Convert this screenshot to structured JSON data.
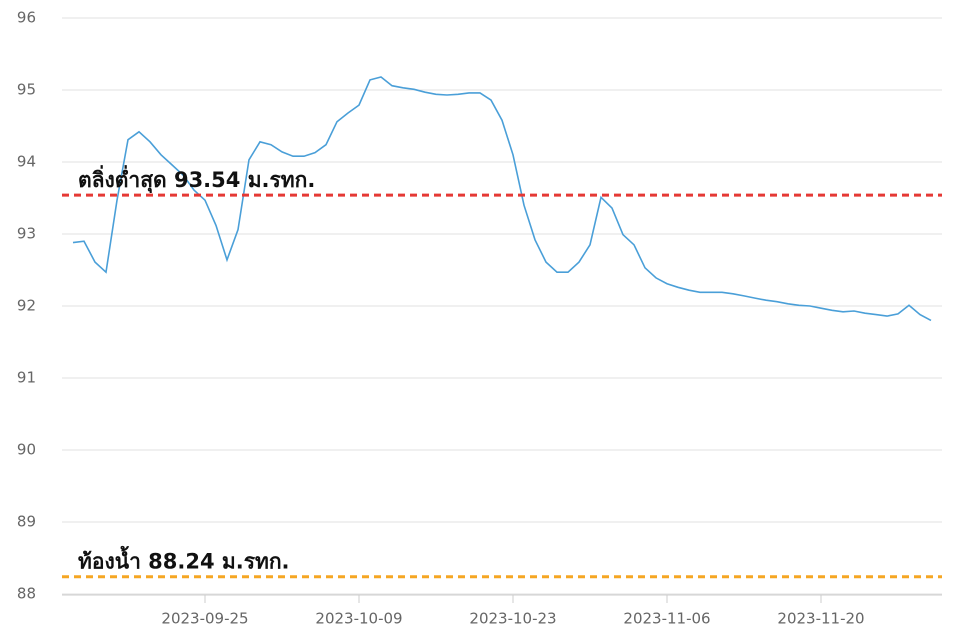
{
  "chart_data": {
    "type": "line",
    "x": [
      "2023-09-13",
      "2023-09-14",
      "2023-09-15",
      "2023-09-16",
      "2023-09-17",
      "2023-09-18",
      "2023-09-19",
      "2023-09-20",
      "2023-09-21",
      "2023-09-22",
      "2023-09-23",
      "2023-09-24",
      "2023-09-25",
      "2023-09-26",
      "2023-09-27",
      "2023-09-28",
      "2023-09-29",
      "2023-09-30",
      "2023-10-01",
      "2023-10-02",
      "2023-10-03",
      "2023-10-04",
      "2023-10-05",
      "2023-10-06",
      "2023-10-07",
      "2023-10-08",
      "2023-10-09",
      "2023-10-10",
      "2023-10-11",
      "2023-10-12",
      "2023-10-13",
      "2023-10-14",
      "2023-10-15",
      "2023-10-16",
      "2023-10-17",
      "2023-10-18",
      "2023-10-19",
      "2023-10-20",
      "2023-10-21",
      "2023-10-22",
      "2023-10-23",
      "2023-10-24",
      "2023-10-25",
      "2023-10-26",
      "2023-10-27",
      "2023-10-28",
      "2023-10-29",
      "2023-10-30",
      "2023-10-31",
      "2023-11-01",
      "2023-11-02",
      "2023-11-03",
      "2023-11-04",
      "2023-11-05",
      "2023-11-06",
      "2023-11-07",
      "2023-11-08",
      "2023-11-09",
      "2023-11-10",
      "2023-11-11",
      "2023-11-12",
      "2023-11-13",
      "2023-11-14",
      "2023-11-15",
      "2023-11-16",
      "2023-11-17",
      "2023-11-18",
      "2023-11-19",
      "2023-11-20",
      "2023-11-21",
      "2023-11-22",
      "2023-11-23",
      "2023-11-24",
      "2023-11-25",
      "2023-11-26",
      "2023-11-27",
      "2023-11-28",
      "2023-11-29",
      "2023-11-30"
    ],
    "series": [
      {
        "color": "#4a9fd8",
        "values": [
          92.88,
          92.9,
          92.61,
          92.47,
          93.47,
          94.31,
          94.42,
          94.28,
          94.1,
          93.96,
          93.82,
          93.61,
          93.47,
          93.12,
          92.64,
          93.06,
          94.03,
          94.28,
          94.24,
          94.14,
          94.08,
          94.08,
          94.13,
          94.24,
          94.56,
          94.68,
          94.79,
          95.14,
          95.18,
          95.06,
          95.03,
          95.01,
          94.97,
          94.94,
          94.93,
          94.94,
          94.96,
          94.96,
          94.86,
          94.58,
          94.1,
          93.4,
          92.92,
          92.61,
          92.47,
          92.47,
          92.61,
          92.85,
          93.51,
          93.36,
          92.99,
          92.85,
          92.53,
          92.39,
          92.31,
          92.26,
          92.22,
          92.19,
          92.19,
          92.19,
          92.17,
          92.14,
          92.11,
          92.08,
          92.06,
          92.03,
          92.01,
          92.0,
          91.97,
          91.94,
          91.92,
          91.93,
          91.9,
          91.88,
          91.86,
          91.89,
          92.01,
          91.88,
          91.8
        ]
      }
    ],
    "xlim": [
      "2023-09-12",
      "2023-12-01"
    ],
    "xticks": [
      "2023-09-25",
      "2023-10-09",
      "2023-10-23",
      "2023-11-06",
      "2023-11-20"
    ],
    "ylim": [
      88,
      96
    ],
    "yticks": [
      88,
      89,
      90,
      91,
      92,
      93,
      94,
      95,
      96
    ],
    "grid": true,
    "reference_lines": [
      {
        "value": 93.54,
        "label": "ตลิ่งต่ำสุด 93.54 ม.รทก.",
        "color": "#e53935"
      },
      {
        "value": 88.24,
        "label": "ท้องน้ำ 88.24 ม.รทก.",
        "color": "#f5a623"
      }
    ]
  }
}
